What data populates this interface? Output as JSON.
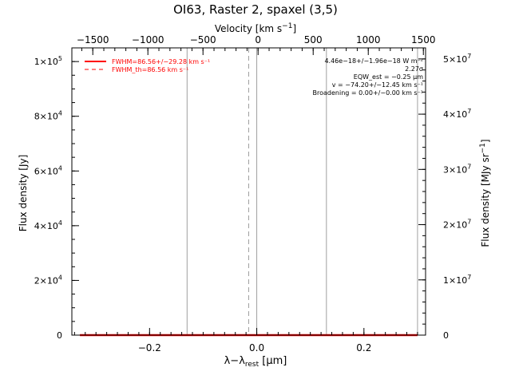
{
  "chart_data": {
    "type": "line",
    "title": "OI63, Raster 2, spaxel (3,5)",
    "xlabel": "λ−λ_rest [μm]",
    "xlabel_parts": {
      "base": "λ−λ",
      "sub": "rest",
      "tail": " [μm]"
    },
    "ylabel_left": "Flux density [Jy]",
    "ylabel_right": "Flux density [MJy sr⁻¹]",
    "xlabel_top": "Velocity [km s⁻¹]",
    "x_range": [
      -0.345,
      0.315
    ],
    "y_left_range": [
      0,
      105000
    ],
    "y_right_range": [
      0,
      52000000
    ],
    "velocity_range": [
      -1690,
      1520
    ],
    "bottom_ticks": [
      {
        "v": -0.2,
        "label": "−0.2"
      },
      {
        "v": 0.0,
        "label": "0.0"
      },
      {
        "v": 0.2,
        "label": "0.2"
      }
    ],
    "left_ticks": [
      {
        "v": 0,
        "mant": "0",
        "exp": ""
      },
      {
        "v": 20000,
        "mant": "2×10",
        "exp": "4"
      },
      {
        "v": 40000,
        "mant": "4×10",
        "exp": "4"
      },
      {
        "v": 60000,
        "mant": "6×10",
        "exp": "4"
      },
      {
        "v": 80000,
        "mant": "8×10",
        "exp": "4"
      },
      {
        "v": 100000,
        "mant": "1×10",
        "exp": "5"
      }
    ],
    "right_ticks": [
      {
        "v": 0,
        "mant": "0",
        "exp": ""
      },
      {
        "v": 10000000,
        "mant": "1×10",
        "exp": "7"
      },
      {
        "v": 20000000,
        "mant": "2×10",
        "exp": "7"
      },
      {
        "v": 30000000,
        "mant": "3×10",
        "exp": "7"
      },
      {
        "v": 40000000,
        "mant": "4×10",
        "exp": "7"
      },
      {
        "v": 50000000,
        "mant": "5×10",
        "exp": "7"
      }
    ],
    "top_ticks": [
      {
        "v": -1500,
        "label": "−1500"
      },
      {
        "v": -1000,
        "label": "−1000"
      },
      {
        "v": -500,
        "label": "−500"
      },
      {
        "v": 0,
        "label": "0"
      },
      {
        "v": 500,
        "label": "500"
      },
      {
        "v": 1000,
        "label": "1000"
      },
      {
        "v": 1500,
        "label": "1500"
      }
    ],
    "vertical_lines": [
      {
        "x": -0.13,
        "style": "solid",
        "color": "#a0a0a0"
      },
      {
        "x": -0.015,
        "style": "dashed",
        "color": "#a0a0a0"
      },
      {
        "x": 0.0,
        "style": "solid",
        "color": "#a0a0a0"
      },
      {
        "x": 0.13,
        "style": "solid",
        "color": "#a0a0a0"
      },
      {
        "x": 0.3,
        "style": "solid",
        "color": "#a0a0a0"
      }
    ],
    "series": [
      {
        "name": "FWHM=86.56+/−29.28 km s⁻¹",
        "color": "#ff0000",
        "style": "solid",
        "x": [
          -0.33,
          -0.2,
          -0.1,
          0.0,
          0.1,
          0.2,
          0.3
        ],
        "y": [
          0,
          0,
          0,
          0,
          0,
          0,
          0
        ]
      }
    ],
    "legend": {
      "placement": "top-left",
      "entries": [
        {
          "label": "FWHM=86.56+/−29.28 km s⁻¹",
          "style": "solid",
          "color": "#ff0000"
        },
        {
          "label": "FWHM_th=86.56 km s⁻¹",
          "style": "dashed",
          "color": "#ff0000"
        }
      ]
    },
    "annotations": [
      "4.46e−18+/−1.96e−18 W m⁻²",
      "2.27σ",
      "EQW_est = −0.25 μm",
      "v = −74.20+/−12.45 km s⁻¹",
      "Broadening = 0.00+/−0.00 km s⁻¹"
    ],
    "grid": false
  }
}
